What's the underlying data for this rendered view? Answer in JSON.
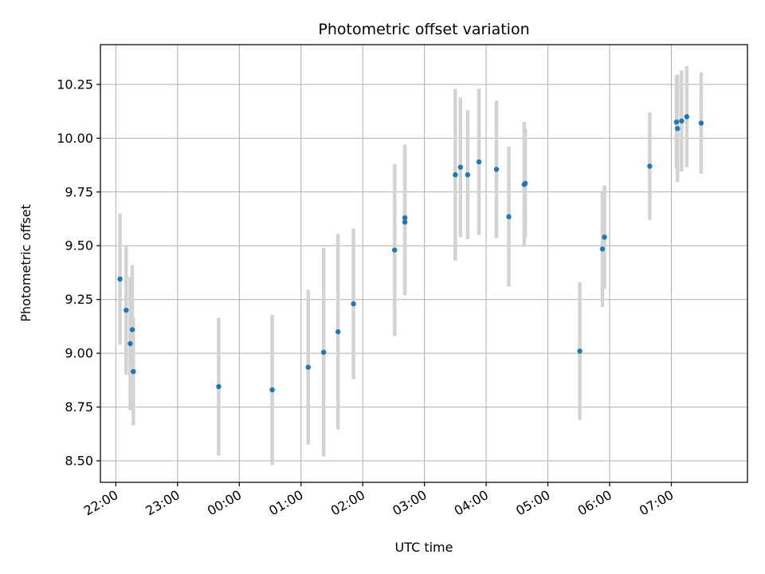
{
  "chart_data": {
    "type": "scatter",
    "title": "Photometric offset variation",
    "xlabel": "UTC time",
    "ylabel": "Photometric offset",
    "grid": true,
    "x_unit": "UTC time (HH:MM, night spanning 22:00 to 07:30)",
    "xlim": [
      "21:45",
      "08:14"
    ],
    "ylim": [
      8.4,
      10.435
    ],
    "x_ticks": [
      "22:00",
      "23:00",
      "00:00",
      "01:00",
      "02:00",
      "03:00",
      "04:00",
      "05:00",
      "06:00",
      "07:00"
    ],
    "y_ticks": [
      8.5,
      8.75,
      9.0,
      9.25,
      9.5,
      9.75,
      10.0,
      10.25
    ],
    "y_tick_labels": [
      "8.50",
      "8.75",
      "9.00",
      "9.25",
      "9.50",
      "9.75",
      "10.00",
      "10.25"
    ],
    "colors": {
      "point": "#1f77b4",
      "errorbar": "#d3d3d3",
      "grid": "#b0b0b0"
    },
    "points": [
      {
        "x": "22:04",
        "y": 9.345,
        "err": 0.305
      },
      {
        "x": "22:10",
        "y": 9.2,
        "err": 0.3
      },
      {
        "x": "22:14",
        "y": 9.045,
        "err": 0.31
      },
      {
        "x": "22:16",
        "y": 9.11,
        "err": 0.3
      },
      {
        "x": "22:17",
        "y": 8.915,
        "err": 0.25
      },
      {
        "x": "23:40",
        "y": 8.845,
        "err": 0.32
      },
      {
        "x": "00:32",
        "y": 8.83,
        "err": 0.35
      },
      {
        "x": "01:07",
        "y": 8.935,
        "err": 0.36
      },
      {
        "x": "01:22",
        "y": 9.005,
        "err": 0.485
      },
      {
        "x": "01:36",
        "y": 9.1,
        "err": 0.455
      },
      {
        "x": "01:51",
        "y": 9.23,
        "err": 0.35
      },
      {
        "x": "02:31",
        "y": 9.48,
        "err": 0.4
      },
      {
        "x": "02:41",
        "y": 9.63,
        "err": 0.34
      },
      {
        "x": "02:41",
        "y": 9.61,
        "err": 0.34
      },
      {
        "x": "03:30",
        "y": 9.83,
        "err": 0.4
      },
      {
        "x": "03:35",
        "y": 9.865,
        "err": 0.325
      },
      {
        "x": "03:42",
        "y": 9.83,
        "err": 0.3
      },
      {
        "x": "03:53",
        "y": 9.89,
        "err": 0.34
      },
      {
        "x": "04:10",
        "y": 9.855,
        "err": 0.32
      },
      {
        "x": "04:22",
        "y": 9.635,
        "err": 0.325
      },
      {
        "x": "04:37",
        "y": 9.785,
        "err": 0.29
      },
      {
        "x": "04:38",
        "y": 9.79,
        "err": 0.255
      },
      {
        "x": "05:31",
        "y": 9.01,
        "err": 0.32
      },
      {
        "x": "05:53",
        "y": 9.485,
        "err": 0.27
      },
      {
        "x": "05:55",
        "y": 9.54,
        "err": 0.24
      },
      {
        "x": "06:39",
        "y": 9.87,
        "err": 0.25
      },
      {
        "x": "07:05",
        "y": 10.075,
        "err": 0.215
      },
      {
        "x": "07:06",
        "y": 10.045,
        "err": 0.25
      },
      {
        "x": "07:10",
        "y": 10.08,
        "err": 0.235
      },
      {
        "x": "07:15",
        "y": 10.1,
        "err": 0.235
      },
      {
        "x": "07:29",
        "y": 10.07,
        "err": 0.235
      }
    ]
  }
}
